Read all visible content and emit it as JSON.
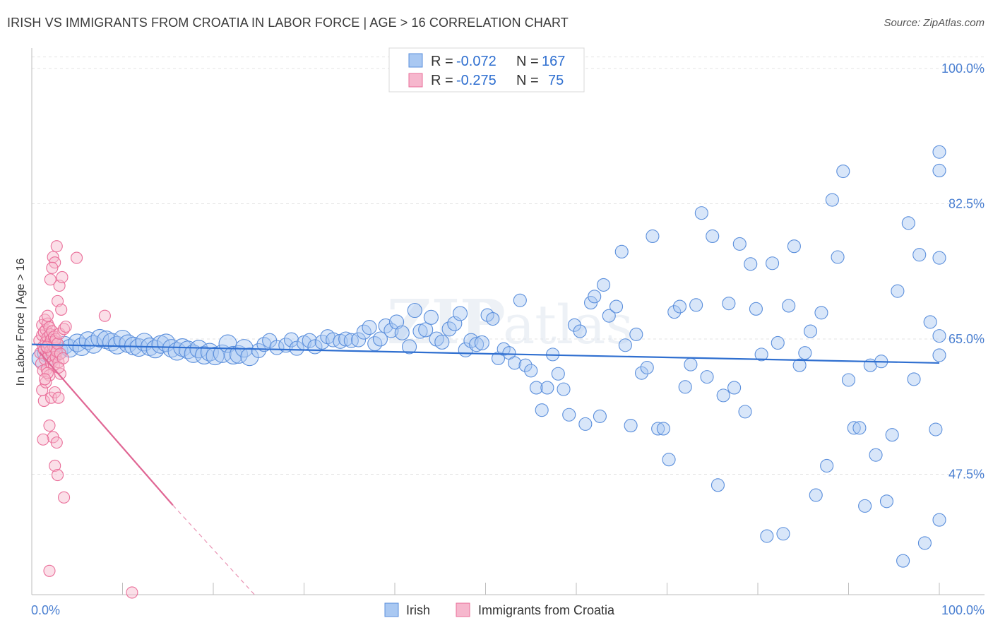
{
  "header": {
    "title": "IRISH VS IMMIGRANTS FROM CROATIA IN LABOR FORCE | AGE > 16 CORRELATION CHART",
    "source": "Source: ZipAtlas.com"
  },
  "watermark": {
    "zip": "ZIP",
    "atlas": "atlas"
  },
  "colors": {
    "irish": "#5b8fdc",
    "irish_fill": "#a9c8f2",
    "croatia": "#ea6f9a",
    "croatia_fill": "#f6b7cd",
    "irish_line": "#2f6fd0",
    "croatia_line": "#e06694"
  },
  "chart_data": {
    "type": "scatter",
    "title": "IRISH VS IMMIGRANTS FROM CROATIA IN LABOR FORCE | AGE > 16 CORRELATION CHART",
    "ylabel": "In Labor Force | Age > 16",
    "xlabel": "",
    "xlim": [
      0,
      100
    ],
    "ylim": [
      30,
      102
    ],
    "x_tick_labels": [
      "0.0%",
      "100.0%"
    ],
    "y_ticks": [
      100.0,
      82.5,
      65.0,
      47.5
    ],
    "y_tick_labels": [
      "100.0%",
      "82.5%",
      "65.0%",
      "47.5%"
    ],
    "grid": true,
    "legend": {
      "placement": "top-center",
      "entries": [
        {
          "r_label": "R =",
          "r_value": "-0.072",
          "n_label": "N =",
          "n_value": "167"
        },
        {
          "r_label": "R =",
          "r_value": "-0.275",
          "n_label": "N =",
          "n_value": "75"
        }
      ]
    },
    "bottom_legend": [
      "Irish",
      "Immigrants from Croatia"
    ],
    "series": [
      {
        "name": "Irish",
        "trend": {
          "x": [
            0,
            100
          ],
          "y": [
            64.3,
            61.9
          ]
        },
        "points": [
          [
            1.0,
            62.5
          ],
          [
            1.6,
            63.2
          ],
          [
            2.2,
            62.8
          ],
          [
            3.0,
            63.5
          ],
          [
            3.6,
            64.2
          ],
          [
            4.2,
            63.8
          ],
          [
            5.0,
            64.5
          ],
          [
            5.5,
            64.0
          ],
          [
            6.2,
            64.8
          ],
          [
            6.8,
            64.3
          ],
          [
            7.5,
            65.1
          ],
          [
            8.2,
            64.9
          ],
          [
            8.8,
            64.6
          ],
          [
            9.4,
            64.2
          ],
          [
            10.0,
            65.0
          ],
          [
            10.6,
            64.4
          ],
          [
            11.2,
            64.1
          ],
          [
            11.8,
            63.9
          ],
          [
            12.4,
            64.6
          ],
          [
            13.0,
            64.0
          ],
          [
            13.6,
            63.7
          ],
          [
            14.2,
            64.3
          ],
          [
            14.8,
            64.5
          ],
          [
            15.4,
            63.8
          ],
          [
            16.0,
            63.4
          ],
          [
            16.6,
            63.9
          ],
          [
            17.2,
            63.6
          ],
          [
            17.8,
            63.1
          ],
          [
            18.4,
            63.7
          ],
          [
            19.0,
            62.9
          ],
          [
            19.6,
            63.3
          ],
          [
            20.2,
            62.8
          ],
          [
            21.0,
            63.1
          ],
          [
            21.6,
            64.4
          ],
          [
            22.2,
            62.9
          ],
          [
            22.8,
            63.0
          ],
          [
            23.4,
            63.8
          ],
          [
            24.0,
            62.7
          ],
          [
            25.0,
            63.5
          ],
          [
            25.6,
            64.3
          ],
          [
            26.2,
            64.8
          ],
          [
            27.0,
            63.9
          ],
          [
            28.0,
            64.2
          ],
          [
            28.6,
            64.9
          ],
          [
            29.2,
            63.8
          ],
          [
            30.0,
            64.5
          ],
          [
            30.6,
            64.8
          ],
          [
            31.2,
            64.0
          ],
          [
            32.0,
            64.6
          ],
          [
            32.6,
            65.3
          ],
          [
            33.2,
            64.9
          ],
          [
            34.0,
            64.7
          ],
          [
            34.6,
            65.0
          ],
          [
            35.2,
            64.8
          ],
          [
            36.0,
            64.9
          ],
          [
            36.6,
            65.9
          ],
          [
            37.2,
            66.5
          ],
          [
            37.8,
            64.4
          ],
          [
            38.4,
            65.0
          ],
          [
            39.0,
            66.7
          ],
          [
            39.6,
            66.1
          ],
          [
            40.2,
            67.2
          ],
          [
            40.8,
            65.8
          ],
          [
            41.6,
            64.0
          ],
          [
            42.2,
            68.7
          ],
          [
            42.8,
            66.0
          ],
          [
            43.4,
            66.2
          ],
          [
            44.0,
            67.8
          ],
          [
            44.6,
            65.0
          ],
          [
            45.2,
            64.6
          ],
          [
            46.0,
            66.3
          ],
          [
            46.6,
            67.0
          ],
          [
            47.2,
            68.3
          ],
          [
            47.8,
            63.6
          ],
          [
            48.4,
            64.8
          ],
          [
            49.0,
            64.3
          ],
          [
            49.6,
            64.5
          ],
          [
            50.2,
            68.1
          ],
          [
            50.8,
            67.6
          ],
          [
            51.4,
            62.5
          ],
          [
            52.0,
            63.7
          ],
          [
            52.6,
            63.2
          ],
          [
            53.2,
            61.9
          ],
          [
            53.8,
            70.0
          ],
          [
            54.4,
            61.6
          ],
          [
            55.0,
            60.9
          ],
          [
            55.6,
            58.7
          ],
          [
            56.2,
            55.8
          ],
          [
            56.8,
            58.7
          ],
          [
            57.4,
            63.0
          ],
          [
            58.0,
            60.5
          ],
          [
            58.6,
            58.5
          ],
          [
            59.2,
            55.2
          ],
          [
            59.8,
            66.8
          ],
          [
            60.4,
            66.0
          ],
          [
            61.0,
            54.0
          ],
          [
            61.6,
            69.7
          ],
          [
            62.0,
            70.5
          ],
          [
            62.6,
            55.0
          ],
          [
            63.0,
            72.0
          ],
          [
            63.6,
            68.0
          ],
          [
            64.4,
            69.2
          ],
          [
            65.0,
            76.3
          ],
          [
            65.4,
            64.2
          ],
          [
            66.0,
            53.8
          ],
          [
            66.6,
            65.6
          ],
          [
            67.2,
            60.6
          ],
          [
            67.8,
            61.3
          ],
          [
            68.4,
            78.3
          ],
          [
            69.0,
            53.4
          ],
          [
            69.6,
            53.4
          ],
          [
            70.2,
            49.4
          ],
          [
            70.8,
            68.5
          ],
          [
            71.4,
            69.2
          ],
          [
            72.0,
            58.8
          ],
          [
            72.6,
            61.7
          ],
          [
            73.2,
            69.4
          ],
          [
            73.8,
            81.3
          ],
          [
            74.4,
            60.1
          ],
          [
            75.0,
            78.3
          ],
          [
            75.6,
            46.1
          ],
          [
            76.2,
            57.7
          ],
          [
            76.8,
            69.6
          ],
          [
            77.4,
            58.7
          ],
          [
            78.0,
            77.3
          ],
          [
            78.6,
            55.6
          ],
          [
            79.2,
            74.7
          ],
          [
            79.8,
            68.9
          ],
          [
            80.4,
            63.0
          ],
          [
            81.0,
            39.5
          ],
          [
            81.6,
            74.8
          ],
          [
            82.2,
            64.5
          ],
          [
            82.8,
            39.8
          ],
          [
            83.4,
            69.3
          ],
          [
            84.0,
            77.0
          ],
          [
            84.6,
            61.6
          ],
          [
            85.2,
            63.2
          ],
          [
            85.8,
            66.0
          ],
          [
            86.4,
            44.8
          ],
          [
            87.0,
            68.4
          ],
          [
            87.6,
            48.6
          ],
          [
            88.2,
            83.0
          ],
          [
            88.8,
            75.6
          ],
          [
            89.4,
            86.7
          ],
          [
            90.0,
            59.7
          ],
          [
            90.6,
            53.5
          ],
          [
            91.2,
            53.5
          ],
          [
            91.8,
            43.4
          ],
          [
            92.4,
            61.6
          ],
          [
            93.0,
            50.0
          ],
          [
            93.6,
            62.1
          ],
          [
            94.2,
            44.0
          ],
          [
            94.8,
            52.6
          ],
          [
            95.4,
            71.2
          ],
          [
            96.0,
            36.3
          ],
          [
            96.6,
            80.0
          ],
          [
            97.2,
            59.8
          ],
          [
            97.8,
            75.9
          ],
          [
            98.4,
            38.6
          ],
          [
            99.0,
            67.2
          ],
          [
            99.6,
            53.3
          ],
          [
            100.0,
            62.9
          ],
          [
            100.6,
            89.2
          ],
          [
            101.2,
            65.4
          ],
          [
            101.8,
            41.6
          ],
          [
            102.4,
            75.5
          ],
          [
            103.0,
            86.8
          ]
        ]
      },
      {
        "name": "Immigrants from Croatia",
        "trend": {
          "x": [
            0.3,
            15
          ],
          "y": [
            63.3,
            43.5
          ]
        },
        "trend_dashed": {
          "x": [
            15,
            24
          ],
          "y": [
            43.5,
            31.0
          ]
        },
        "points": [
          [
            0.3,
            64.8
          ],
          [
            0.4,
            63.2
          ],
          [
            0.5,
            61.8
          ],
          [
            0.6,
            65.5
          ],
          [
            0.6,
            66.8
          ],
          [
            0.7,
            64.0
          ],
          [
            0.7,
            60.9
          ],
          [
            0.8,
            63.6
          ],
          [
            0.8,
            65.9
          ],
          [
            0.9,
            67.5
          ],
          [
            0.9,
            62.4
          ],
          [
            1.0,
            64.6
          ],
          [
            1.0,
            66.2
          ],
          [
            1.1,
            61.1
          ],
          [
            1.1,
            63.9
          ],
          [
            1.2,
            65.2
          ],
          [
            1.2,
            67.0
          ],
          [
            1.3,
            62.8
          ],
          [
            1.3,
            64.3
          ],
          [
            1.4,
            66.5
          ],
          [
            1.4,
            60.3
          ],
          [
            1.5,
            63.5
          ],
          [
            1.5,
            65.6
          ],
          [
            1.6,
            61.9
          ],
          [
            1.6,
            64.9
          ],
          [
            1.7,
            63.0
          ],
          [
            1.7,
            66.0
          ],
          [
            1.8,
            62.2
          ],
          [
            1.8,
            64.1
          ],
          [
            1.9,
            65.3
          ],
          [
            1.9,
            61.6
          ],
          [
            2.0,
            63.8
          ],
          [
            2.0,
            64.7
          ],
          [
            2.1,
            62.7
          ],
          [
            2.1,
            65.0
          ],
          [
            2.2,
            63.4
          ],
          [
            2.3,
            64.4
          ],
          [
            2.4,
            62.0
          ],
          [
            2.5,
            65.7
          ],
          [
            2.6,
            63.1
          ],
          [
            1.5,
            72.7
          ],
          [
            1.8,
            75.6
          ],
          [
            2.0,
            74.9
          ],
          [
            2.3,
            69.9
          ],
          [
            2.5,
            71.9
          ],
          [
            2.8,
            73.0
          ],
          [
            1.7,
            74.2
          ],
          [
            2.2,
            77.0
          ],
          [
            2.7,
            68.8
          ],
          [
            3.0,
            66.3
          ],
          [
            0.6,
            58.4
          ],
          [
            0.8,
            57.0
          ],
          [
            1.0,
            59.4
          ],
          [
            1.2,
            60.6
          ],
          [
            1.6,
            57.4
          ],
          [
            2.0,
            58.1
          ],
          [
            1.4,
            53.8
          ],
          [
            1.8,
            52.3
          ],
          [
            2.2,
            51.6
          ],
          [
            0.7,
            52.0
          ],
          [
            2.4,
            57.4
          ],
          [
            2.0,
            48.6
          ],
          [
            2.3,
            47.4
          ],
          [
            3.0,
            44.5
          ],
          [
            1.4,
            35.0
          ],
          [
            10.5,
            32.2
          ],
          [
            4.4,
            75.5
          ],
          [
            7.5,
            68.0
          ],
          [
            2.6,
            60.5
          ],
          [
            1.2,
            68.0
          ],
          [
            0.9,
            59.8
          ],
          [
            2.9,
            62.5
          ],
          [
            2.4,
            61.3
          ],
          [
            1.1,
            64.0
          ],
          [
            3.2,
            66.6
          ]
        ]
      }
    ]
  }
}
